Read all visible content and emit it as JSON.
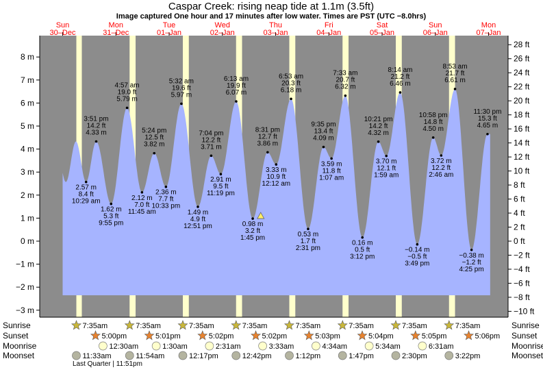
{
  "title": "Caspar Creek: rising  neap tide at 1.1m (3.5ft)",
  "subtitle": "Image captured One hour and 17 minutes after low water. Times are PST (UTC −8.0hrs)",
  "colors": {
    "night": "#8c8c8c",
    "day": "#ffffcc",
    "water": "#a6b4ff",
    "day_label": "#ff0000",
    "star_sunrise": "#c9b73a",
    "star_sunset": "#e8832f",
    "moonrise": "#ffffcc",
    "moonset": "#b4b4a0"
  },
  "chart_data": {
    "type": "area",
    "left_axis": {
      "unit": "m",
      "ticks": [
        "8 m",
        "7 m",
        "6 m",
        "5 m",
        "4 m",
        "3 m",
        "2 m",
        "1 m",
        "0 m",
        "−1 m",
        "−2 m",
        "−3 m"
      ],
      "range": [
        -3.3,
        8.8
      ]
    },
    "right_axis": {
      "unit": "ft",
      "ticks": [
        "28 ft",
        "26 ft",
        "24 ft",
        "22 ft",
        "20 ft",
        "18 ft",
        "16 ft",
        "14 ft",
        "12 ft",
        "10 ft",
        "8 ft",
        "6 ft",
        "4 ft",
        "2 ft",
        "0 ft",
        "−2 ft",
        "−4 ft",
        "−6 ft",
        "−8 ft",
        "−10 ft"
      ]
    },
    "days": [
      {
        "dow": "Sun",
        "date": "30–Dec"
      },
      {
        "dow": "Mon",
        "date": "31–Dec"
      },
      {
        "dow": "Tue",
        "date": "01–Jan"
      },
      {
        "dow": "Wed",
        "date": "02–Jan"
      },
      {
        "dow": "Thu",
        "date": "03–Jan"
      },
      {
        "dow": "Fri",
        "date": "04–Jan"
      },
      {
        "dow": "Sat",
        "date": "05–Jan"
      },
      {
        "dow": "Sun",
        "date": "06–Jan"
      },
      {
        "dow": "Mon",
        "date": "07–Jan"
      }
    ],
    "tides": [
      {
        "time": "3:51 pm",
        "ft": "14.2 ft",
        "m": "4.33 m",
        "x_day": 0.63,
        "val": 4.33,
        "above": true
      },
      {
        "time": "10:29 am",
        "ft": "8.4 ft",
        "m": "2.57 m",
        "x_day": 0.44,
        "val": 2.57,
        "above": false
      },
      {
        "time": "9:55 pm",
        "ft": "5.3 ft",
        "m": "1.62 m",
        "x_day": 0.91,
        "val": 1.62,
        "above": false
      },
      {
        "time": "4:57 am",
        "ft": "19.0 ft",
        "m": "5.79 m",
        "x_day": 1.21,
        "val": 5.79,
        "above": true
      },
      {
        "time": "5:24 pm",
        "ft": "12.5 ft",
        "m": "3.82 m",
        "x_day": 1.72,
        "val": 3.82,
        "above": true
      },
      {
        "time": "11:45 am",
        "ft": "7.0 ft",
        "m": "2.12 m",
        "x_day": 1.49,
        "val": 2.12,
        "above": false
      },
      {
        "time": "10:33 pm",
        "ft": "7.7 ft",
        "m": "2.36 m",
        "x_day": 1.94,
        "val": 2.36,
        "above": false
      },
      {
        "time": "5:32 am",
        "ft": "19.6 ft",
        "m": "5.97 m",
        "x_day": 2.23,
        "val": 5.97,
        "above": true
      },
      {
        "time": "7:04 pm",
        "ft": "12.2 ft",
        "m": "3.71 m",
        "x_day": 2.79,
        "val": 3.71,
        "above": true
      },
      {
        "time": "12:51 pm",
        "ft": "4.9 ft",
        "m": "1.49 m",
        "x_day": 2.54,
        "val": 1.49,
        "above": false
      },
      {
        "time": "11:19 pm",
        "ft": "9.5 ft",
        "m": "2.91 m",
        "x_day": 2.97,
        "val": 2.91,
        "above": false
      },
      {
        "time": "6:13 am",
        "ft": "19.9 ft",
        "m": "6.07 m",
        "x_day": 3.26,
        "val": 6.07,
        "above": true
      },
      {
        "time": "8:31 pm",
        "ft": "12.7 ft",
        "m": "3.86 m",
        "x_day": 3.85,
        "val": 3.86,
        "above": true
      },
      {
        "time": "1:45 pm",
        "ft": "3.2 ft",
        "m": "0.98 m",
        "x_day": 3.57,
        "val": 0.98,
        "above": false
      },
      {
        "time": "12:12 am",
        "ft": "10.9 ft",
        "m": "3.33 m",
        "x_day": 4.01,
        "val": 3.33,
        "above": false
      },
      {
        "time": "6:53 am",
        "ft": "20.3 ft",
        "m": "6.18 m",
        "x_day": 4.29,
        "val": 6.18,
        "above": true
      },
      {
        "time": "9:35 pm",
        "ft": "13.4 ft",
        "m": "4.09 m",
        "x_day": 4.9,
        "val": 4.09,
        "above": true
      },
      {
        "time": "2:31 pm",
        "ft": "1.7 ft",
        "m": "0.53 m",
        "x_day": 4.61,
        "val": 0.53,
        "above": false
      },
      {
        "time": "1:07 am",
        "ft": "11.8 ft",
        "m": "3.59 m",
        "x_day": 5.05,
        "val": 3.59,
        "above": false
      },
      {
        "time": "7:33 am",
        "ft": "20.7 ft",
        "m": "6.32 m",
        "x_day": 5.31,
        "val": 6.32,
        "above": true
      },
      {
        "time": "10:21 pm",
        "ft": "14.2 ft",
        "m": "4.32 m",
        "x_day": 5.93,
        "val": 4.32,
        "above": true
      },
      {
        "time": "3:12 pm",
        "ft": "0.5 ft",
        "m": "0.16 m",
        "x_day": 5.63,
        "val": 0.16,
        "above": false
      },
      {
        "time": "1:59 am",
        "ft": "12.1 ft",
        "m": "3.70 m",
        "x_day": 6.08,
        "val": 3.7,
        "above": false
      },
      {
        "time": "8:14 am",
        "ft": "21.2 ft",
        "m": "6.46 m",
        "x_day": 6.34,
        "val": 6.46,
        "above": true
      },
      {
        "time": "10:58 pm",
        "ft": "14.8 ft",
        "m": "4.50 m",
        "x_day": 6.96,
        "val": 4.5,
        "above": true
      },
      {
        "time": "3:49 pm",
        "ft": "−0.5 ft",
        "m": "−0.14 m",
        "x_day": 6.66,
        "val": -0.14,
        "above": false
      },
      {
        "time": "2:46 am",
        "ft": "12.2 ft",
        "m": "3.72 m",
        "x_day": 7.11,
        "val": 3.72,
        "above": false
      },
      {
        "time": "8:53 am",
        "ft": "21.7 ft",
        "m": "6.61 m",
        "x_day": 7.37,
        "val": 6.61,
        "above": true
      },
      {
        "time": "11:30 pm",
        "ft": "15.3 ft",
        "m": "4.65 m",
        "x_day": 7.98,
        "val": 4.65,
        "above": true
      },
      {
        "time": "4:25 pm",
        "ft": "−1.2 ft",
        "m": "−0.38 m",
        "x_day": 7.68,
        "val": -0.38,
        "above": false
      }
    ],
    "current": {
      "x_day": 3.72,
      "val": 1.1
    },
    "series_end_x_day": 8.03
  },
  "legend": {
    "sunrise_label": "Sunrise",
    "sunset_label": "Sunset",
    "moonrise_label": "Moonrise",
    "moonset_label": "Moonset",
    "sunrise": [
      {
        "x_day": 0.0,
        "text": "7:35am"
      },
      {
        "x_day": 1.0,
        "text": "7:35am"
      },
      {
        "x_day": 2.0,
        "text": "7:35am"
      },
      {
        "x_day": 3.0,
        "text": "7:35am"
      },
      {
        "x_day": 4.0,
        "text": "7:35am"
      },
      {
        "x_day": 5.0,
        "text": "7:35am"
      },
      {
        "x_day": 6.0,
        "text": "7:35am"
      },
      {
        "x_day": 7.0,
        "text": "7:35am"
      }
    ],
    "sunset": [
      {
        "x_day": 0.36,
        "text": "5:00pm"
      },
      {
        "x_day": 1.37,
        "text": "5:01pm"
      },
      {
        "x_day": 2.37,
        "text": "5:02pm"
      },
      {
        "x_day": 3.37,
        "text": "5:02pm"
      },
      {
        "x_day": 4.37,
        "text": "5:03pm"
      },
      {
        "x_day": 5.37,
        "text": "5:04pm"
      },
      {
        "x_day": 6.37,
        "text": "5:05pm"
      },
      {
        "x_day": 7.37,
        "text": "5:06pm"
      }
    ],
    "moonrise": [
      {
        "x_day": 0.5,
        "text": "12:30am"
      },
      {
        "x_day": 1.5,
        "text": "1:30am"
      },
      {
        "x_day": 2.5,
        "text": "2:31am"
      },
      {
        "x_day": 3.5,
        "text": "3:33am"
      },
      {
        "x_day": 4.5,
        "text": "4:34am"
      },
      {
        "x_day": 5.5,
        "text": "5:34am"
      },
      {
        "x_day": 6.5,
        "text": "6:31am"
      }
    ],
    "moonset": [
      {
        "x_day": 0.0,
        "text": "11:33am"
      },
      {
        "x_day": 1.0,
        "text": "11:54am"
      },
      {
        "x_day": 2.0,
        "text": "12:17pm"
      },
      {
        "x_day": 3.0,
        "text": "12:42pm"
      },
      {
        "x_day": 4.0,
        "text": "1:12pm"
      },
      {
        "x_day": 5.0,
        "text": "1:47pm"
      },
      {
        "x_day": 6.0,
        "text": "2:30pm"
      },
      {
        "x_day": 7.0,
        "text": "3:22pm"
      }
    ],
    "phase": "Last Quarter | 11:51pm"
  }
}
